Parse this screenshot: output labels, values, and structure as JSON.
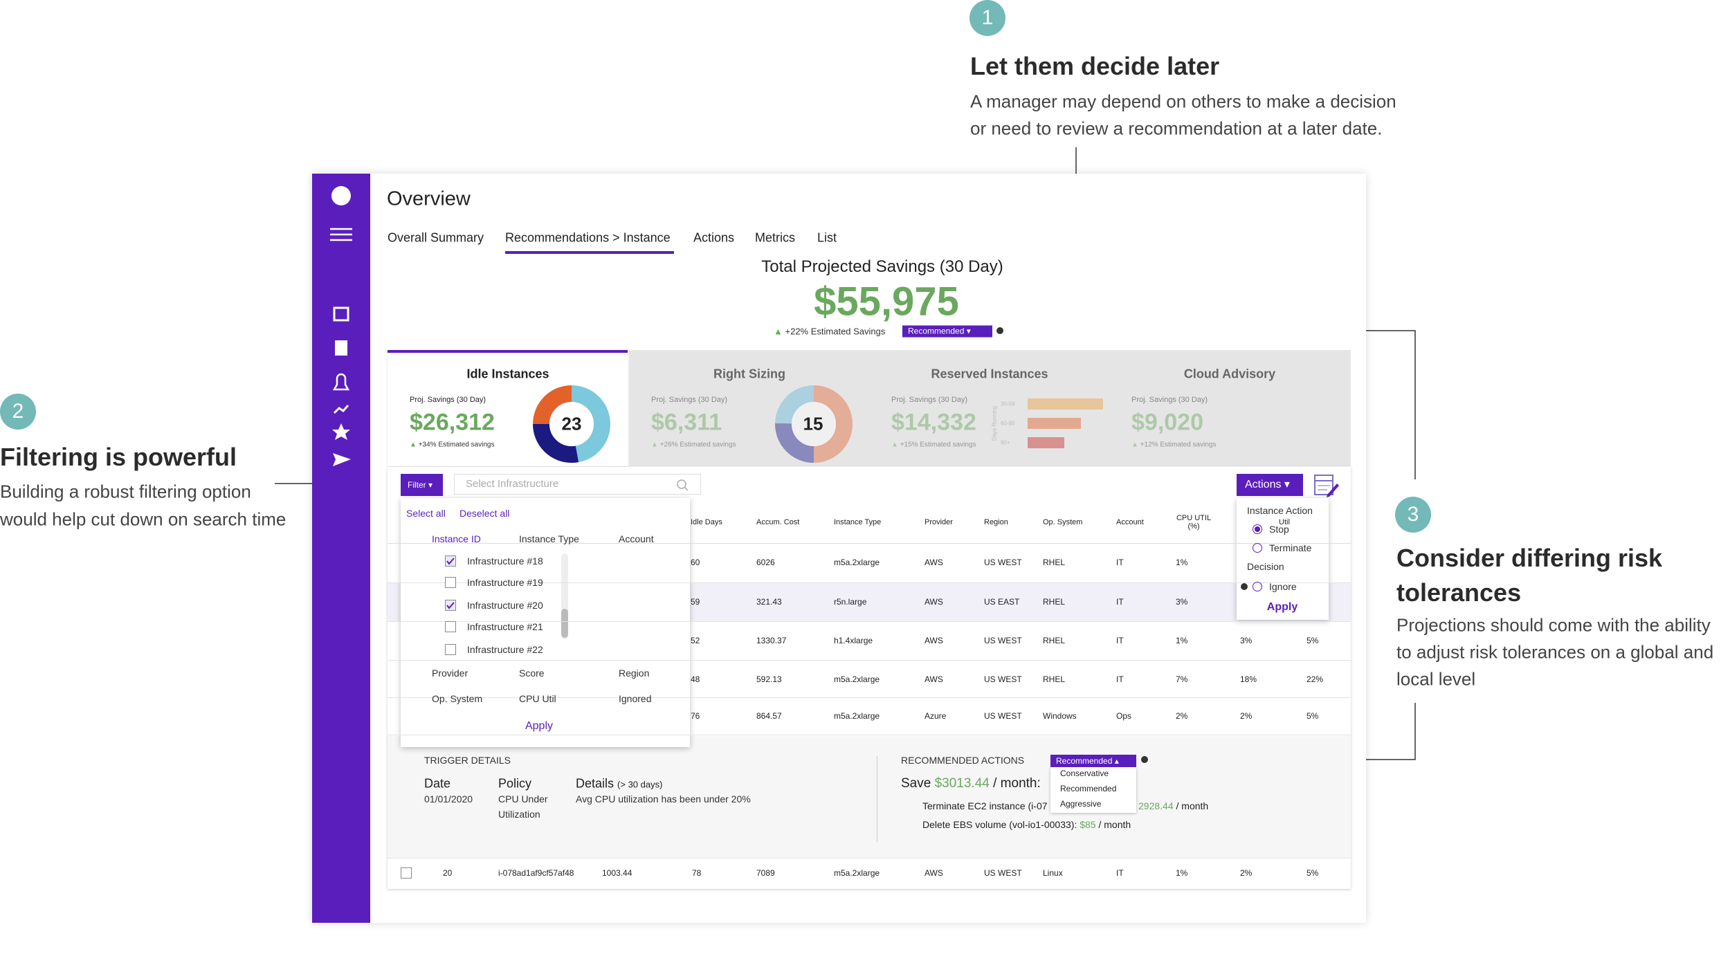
{
  "annotations": [
    {
      "number": "1",
      "title": [
        "Let them decide later"
      ],
      "lines": [
        "A manager may depend on others to make a decision",
        "or need to review a recommendation at a later date."
      ]
    },
    {
      "number": "2",
      "title": [
        "Filtering is powerful"
      ],
      "lines": [
        "Building a robust filtering option",
        "would help cut down on search time"
      ]
    },
    {
      "number": "3",
      "title": [
        "Consider differing risk",
        "tolerances"
      ],
      "lines": [
        "Projections should come with the ability",
        "to adjust risk tolerances on a global and",
        "local level"
      ]
    }
  ],
  "app": {
    "header": "Overview",
    "tabs": [
      "Overall Summary",
      "Recommendations > Instance",
      "Actions",
      "Metrics",
      "List"
    ],
    "savings": {
      "title": "Total Projected Savings (30 Day)",
      "amount": "$55,975",
      "change": "+22% Estimated Savings",
      "badge": "Recommended"
    },
    "cards": [
      {
        "title": "Idle Instances",
        "label": "Proj. Savings (30 Day)",
        "amount": "$26,312",
        "note": "+34% Estimated savings",
        "count": "23"
      },
      {
        "title": "Right Sizing",
        "label": "Proj. Savings (30 Day)",
        "amount": "$6,311",
        "note": "+26% Estimated savings",
        "count": "15"
      },
      {
        "title": "Reserved Instances",
        "label": "Proj. Savings (30 Day)",
        "amount": "$14,332",
        "note": "+15% Estimated savings",
        "axis_label": "Days Running",
        "bar_labels": [
          "30-59",
          "60-89",
          "90+"
        ]
      },
      {
        "title": "Cloud Advisory",
        "label": "Proj. Savings (30 Day)",
        "amount": "$9,020",
        "note": "+12% Estimated savings"
      }
    ],
    "toolbar": {
      "filter": "Filter",
      "search_placeholder": "Select Infrastructure",
      "actions": "Actions"
    },
    "table": {
      "columns": [
        "Idle Days",
        "Accum. Cost",
        "Instance Type",
        "Provider",
        "Region",
        "Op. System",
        "Account",
        "CPU UTIL (%)",
        "Util"
      ],
      "rows": [
        [
          "60",
          "6026",
          "m5a.2xlarge",
          "AWS",
          "US WEST",
          "RHEL",
          "IT",
          "1%"
        ],
        [
          "59",
          "321.43",
          "r5n.large",
          "AWS",
          "US EAST",
          "RHEL",
          "IT",
          "3%"
        ],
        [
          "52",
          "1330.37",
          "h1.4xlarge",
          "AWS",
          "US WEST",
          "RHEL",
          "IT",
          "1%",
          "3%",
          "5%"
        ],
        [
          "48",
          "592.13",
          "m5a.2xlarge",
          "AWS",
          "US WEST",
          "RHEL",
          "IT",
          "7%",
          "18%",
          "22%"
        ],
        [
          "76",
          "864.57",
          "m5a.2xlarge",
          "Azure",
          "US WEST",
          "Windows",
          "Ops",
          "2%",
          "2%",
          "5%"
        ]
      ],
      "last_row": [
        "20",
        "i-078ad1af9cf57af48",
        "1003.44",
        "78",
        "7089",
        "m5a.2xlarge",
        "AWS",
        "US WEST",
        "Linux",
        "IT",
        "1%",
        "2%",
        "5%"
      ]
    },
    "filter_panel": {
      "select_all": "Select all",
      "deselect_all": "Deselect all",
      "columns": [
        "Instance ID",
        "Instance Type",
        "Account"
      ],
      "items": [
        {
          "label": "Infrastructure #18",
          "checked": true
        },
        {
          "label": "Infrastructure #19",
          "checked": false
        },
        {
          "label": "Infrastructure #20",
          "checked": true
        },
        {
          "label": "Infrastructure #21",
          "checked": false
        },
        {
          "label": "Infrastructure #22",
          "checked": false
        }
      ],
      "fields": [
        "Provider",
        "Score",
        "Region",
        "Op. System",
        "CPU Util",
        "Ignored"
      ],
      "apply": "Apply"
    },
    "actions_menu": {
      "instance_action": "Instance Action",
      "options": [
        {
          "label": "Stop",
          "selected": true
        },
        {
          "label": "Terminate",
          "selected": false
        }
      ],
      "decision": "Decision",
      "decision_options": [
        {
          "label": "Ignore",
          "selected": false
        }
      ],
      "apply": "Apply"
    },
    "details": {
      "trigger_title": "TRIGGER DETAILS",
      "date_label": "Date",
      "date": "01/01/2020",
      "policy_label": "Policy",
      "policy": [
        "CPU Under",
        "Utilization"
      ],
      "details_label": "Details",
      "details_range": "(> 30 days)",
      "details_text": "Avg CPU utilization has been under 20%",
      "recommended_title": "RECOMMENDED ACTIONS",
      "dropdown": "Recommended",
      "dropdown_options": [
        "Conservative",
        "Recommended",
        "Aggressive"
      ],
      "save_label": "Save",
      "save_amount": "$3013.44",
      "save_unit": "/ month:",
      "terminate": "Terminate EC2 instance (i-07",
      "terminate_amount": "2928.44",
      "terminate_unit": "/ month",
      "delete": "Delete EBS volume (vol-io1-00033):",
      "delete_amount": "$85",
      "delete_unit": "/ month"
    }
  }
}
